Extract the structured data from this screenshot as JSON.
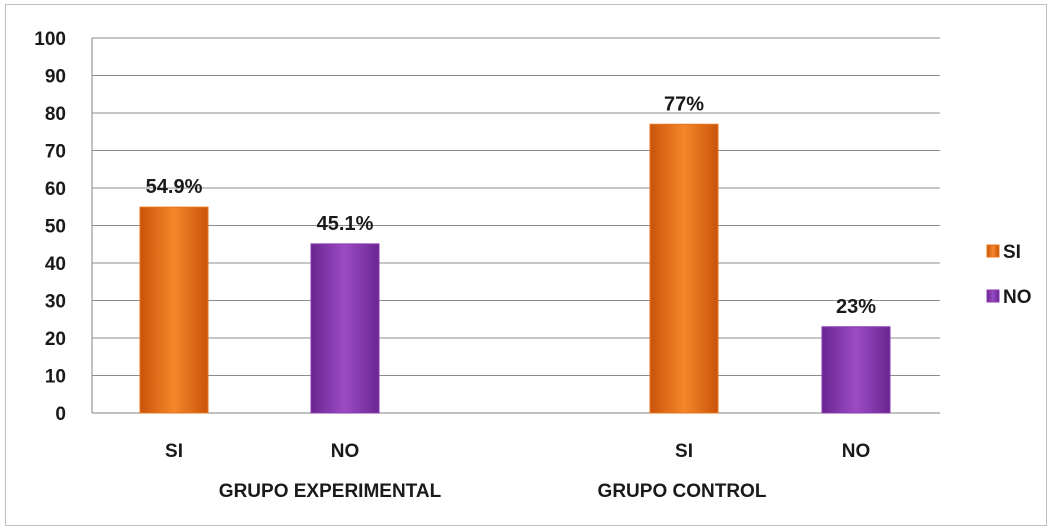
{
  "chart_data": {
    "type": "bar",
    "title": "",
    "xlabel": "",
    "ylabel": "",
    "ylim": [
      0,
      100
    ],
    "yticks": [
      "0",
      "10",
      "20",
      "30",
      "40",
      "50",
      "60",
      "70",
      "80",
      "90",
      "100"
    ],
    "grid": true,
    "legend_position": "right",
    "groups": [
      "GRUPO EXPERIMENTAL",
      "GRUPO CONTROL"
    ],
    "series": [
      {
        "name": "SI",
        "color": "#e8731a"
      },
      {
        "name": "NO",
        "color": "#8a3bb0"
      }
    ],
    "bars": [
      {
        "group": "GRUPO EXPERIMENTAL",
        "category": "SI",
        "series": "SI",
        "value": 54.9,
        "label": "54.9%"
      },
      {
        "group": "GRUPO EXPERIMENTAL",
        "category": "NO",
        "series": "NO",
        "value": 45.1,
        "label": "45.1%"
      },
      {
        "group": "GRUPO CONTROL",
        "category": "SI",
        "series": "SI",
        "value": 77,
        "label": "77%"
      },
      {
        "group": "GRUPO CONTROL",
        "category": "NO",
        "series": "NO",
        "value": 23,
        "label": "23%"
      }
    ]
  }
}
